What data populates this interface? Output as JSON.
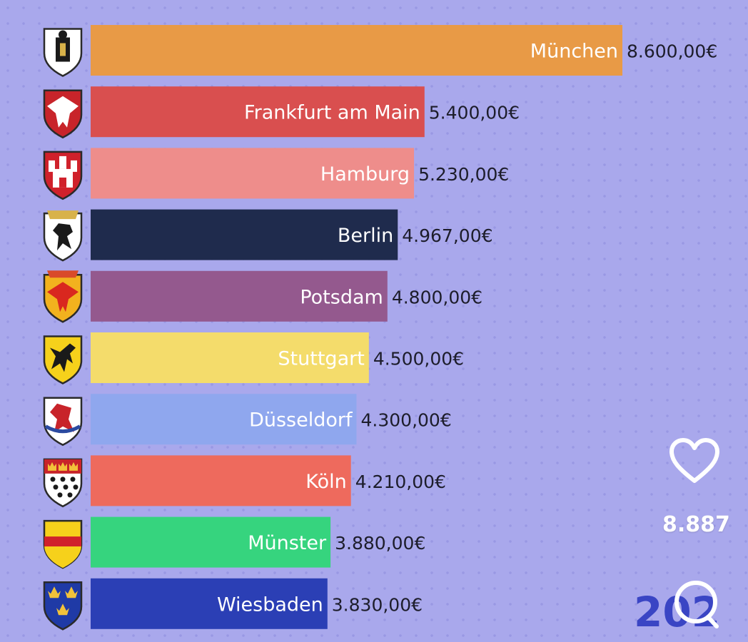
{
  "chart_data": {
    "type": "bar",
    "orientation": "horizontal",
    "categories": [
      "München",
      "Frankfurt am Main",
      "Hamburg",
      "Berlin",
      "Potsdam",
      "Stuttgart",
      "Düsseldorf",
      "Köln",
      "Münster",
      "Wiesbaden"
    ],
    "values": [
      8600,
      5400,
      5230,
      4967,
      4800,
      4500,
      4300,
      4210,
      3880,
      3830
    ],
    "value_labels": [
      "8.600,00€",
      "5.400,00€",
      "5.230,00€",
      "4.967,00€",
      "4.800,00€",
      "4.500,00€",
      "4.300,00€",
      "4.210,00€",
      "3.880,00€",
      "3.830,00€"
    ],
    "bar_colors": [
      "#e89a46",
      "#d94f4f",
      "#ee8d8b",
      "#1f2b4d",
      "#94598e",
      "#f4dc6b",
      "#8fa7ee",
      "#ee6a5d",
      "#36d47e",
      "#2b3fb5"
    ],
    "icons": [
      "munich-coat-of-arms-icon",
      "frankfurt-coat-of-arms-icon",
      "hamburg-coat-of-arms-icon",
      "berlin-coat-of-arms-icon",
      "potsdam-coat-of-arms-icon",
      "stuttgart-coat-of-arms-icon",
      "duesseldorf-coat-of-arms-icon",
      "koeln-coat-of-arms-icon",
      "muenster-coat-of-arms-icon",
      "wiesbaden-coat-of-arms-icon"
    ],
    "title": "",
    "xlabel": "",
    "ylabel": "",
    "xlim": [
      0,
      8600
    ],
    "grid": false,
    "legend": "none",
    "year": "202"
  },
  "overlay": {
    "likes_count": "8.887",
    "like_icon": "heart-outline-icon",
    "comment_icon": "comment-bubble-icon"
  }
}
